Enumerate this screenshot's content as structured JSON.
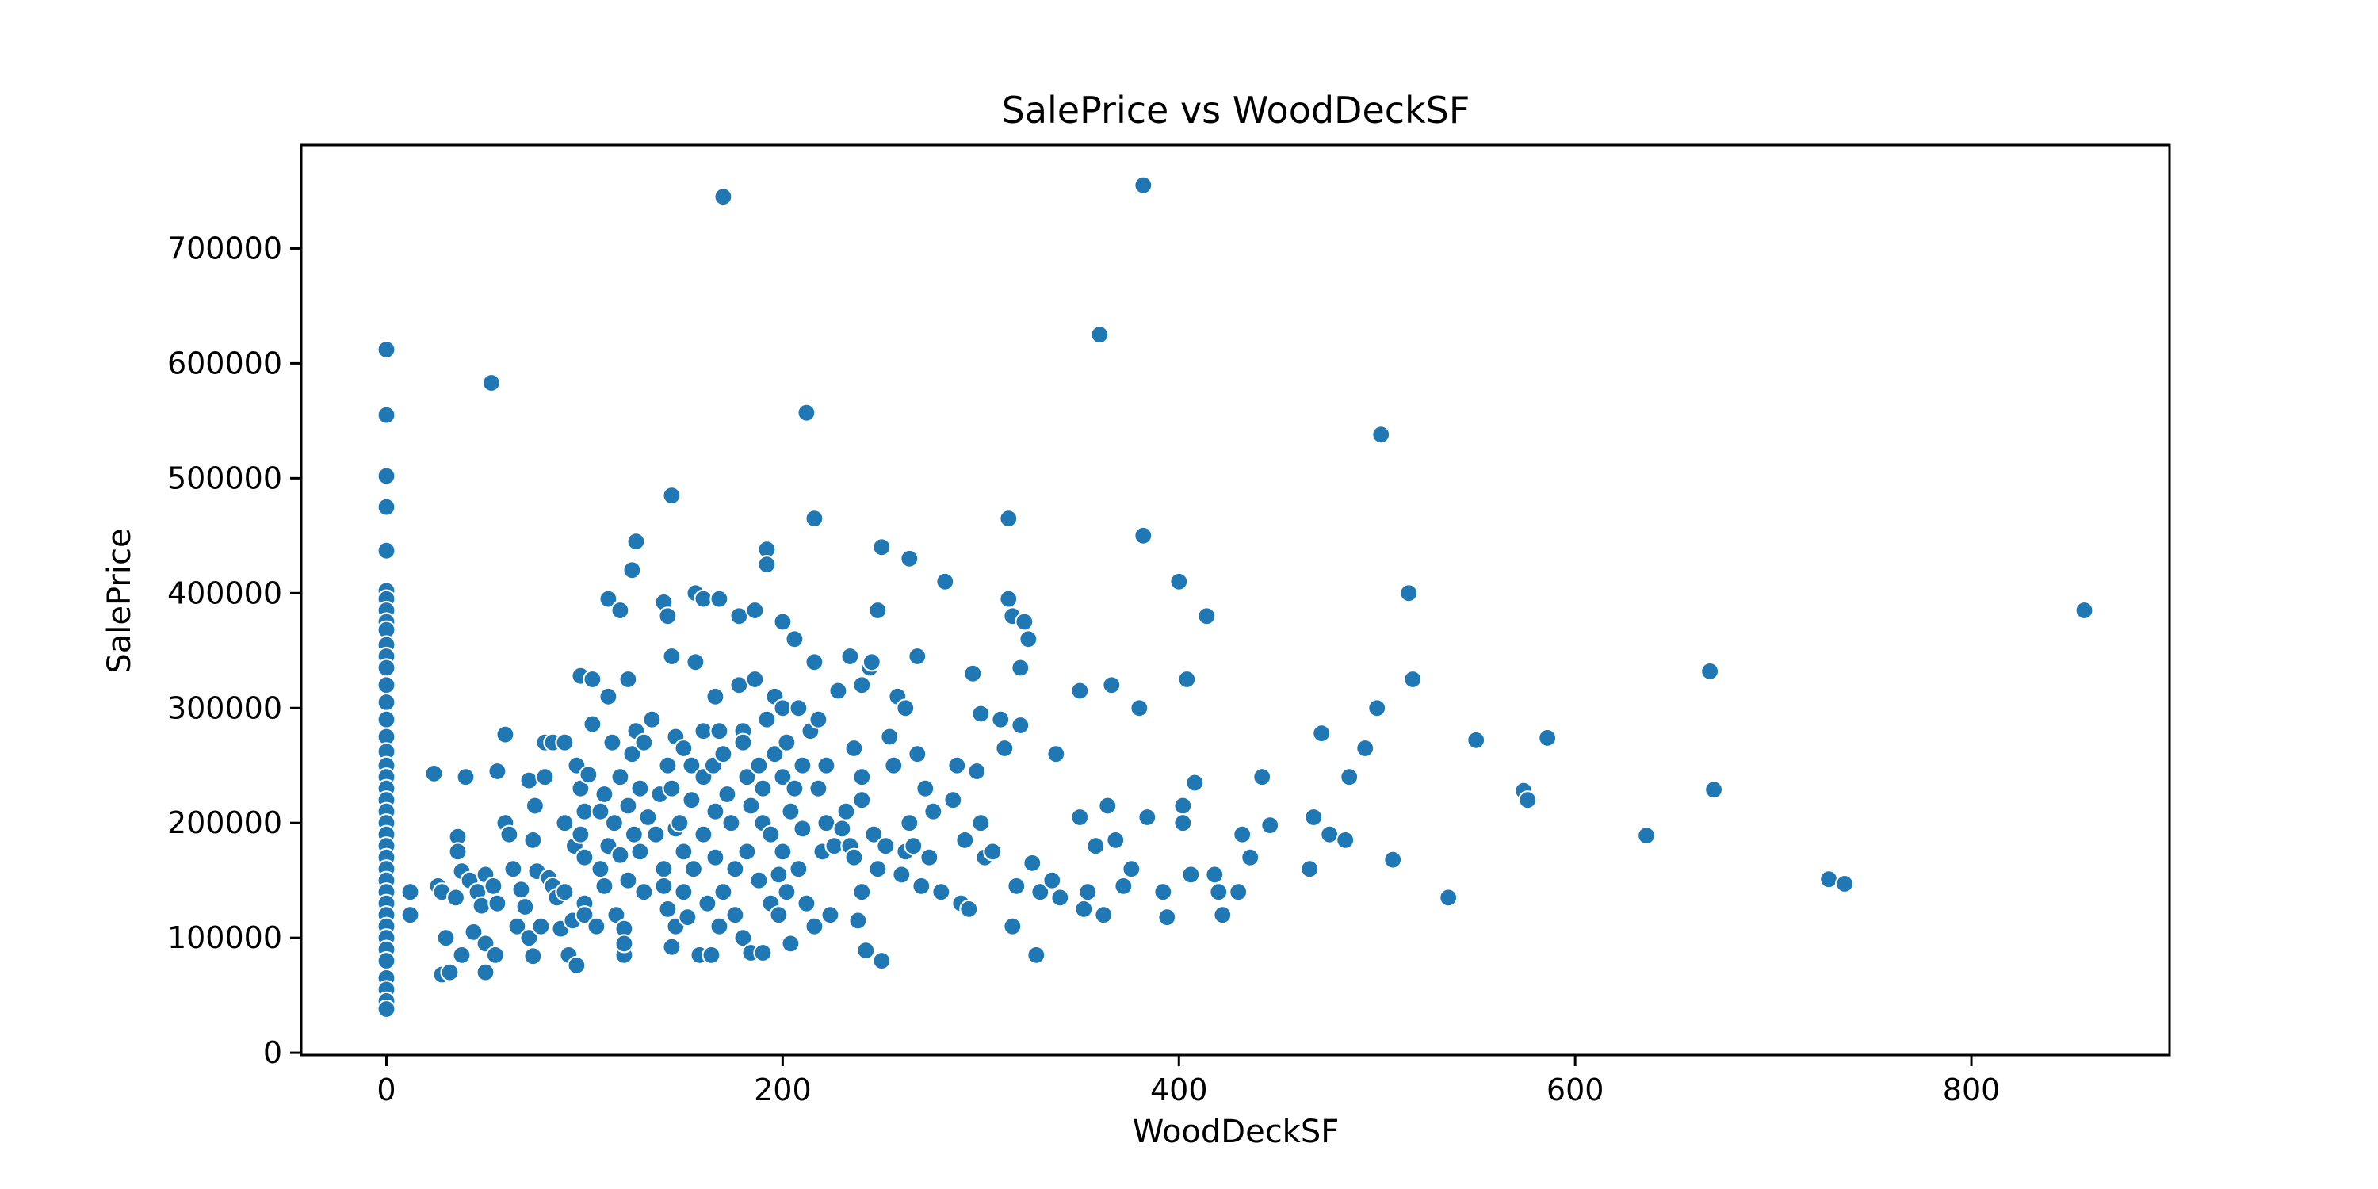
{
  "chart_data": {
    "type": "scatter",
    "title": "SalePrice vs WoodDeckSF",
    "xlabel": "WoodDeckSF",
    "ylabel": "SalePrice",
    "xlim": [
      -43,
      900
    ],
    "ylim": [
      -2000,
      790000
    ],
    "x_ticks": [
      0,
      200,
      400,
      600,
      800
    ],
    "y_ticks": [
      0,
      100000,
      200000,
      300000,
      400000,
      500000,
      600000,
      700000
    ],
    "x_tick_labels": [
      "0",
      "200",
      "400",
      "600",
      "800"
    ],
    "y_tick_labels": [
      "0",
      "100000",
      "200000",
      "300000",
      "400000",
      "500000",
      "600000",
      "700000"
    ],
    "grid": false,
    "legend": "none",
    "marker_color": "#1f77b4",
    "points": [
      [
        0,
        612000
      ],
      [
        0,
        555000
      ],
      [
        0,
        502000
      ],
      [
        0,
        475000
      ],
      [
        0,
        437000
      ],
      [
        0,
        402000
      ],
      [
        0,
        395000
      ],
      [
        0,
        385000
      ],
      [
        0,
        375000
      ],
      [
        0,
        368000
      ],
      [
        0,
        355000
      ],
      [
        0,
        345000
      ],
      [
        0,
        335000
      ],
      [
        0,
        320000
      ],
      [
        0,
        305000
      ],
      [
        0,
        290000
      ],
      [
        0,
        275000
      ],
      [
        0,
        262000
      ],
      [
        0,
        250000
      ],
      [
        0,
        240000
      ],
      [
        0,
        230000
      ],
      [
        0,
        220000
      ],
      [
        0,
        210000
      ],
      [
        0,
        200000
      ],
      [
        0,
        190000
      ],
      [
        0,
        180000
      ],
      [
        0,
        170000
      ],
      [
        0,
        160000
      ],
      [
        0,
        150000
      ],
      [
        0,
        140000
      ],
      [
        0,
        130000
      ],
      [
        0,
        120000
      ],
      [
        0,
        110000
      ],
      [
        0,
        100000
      ],
      [
        0,
        90000
      ],
      [
        0,
        80000
      ],
      [
        0,
        65000
      ],
      [
        0,
        55000
      ],
      [
        0,
        45000
      ],
      [
        0,
        38000
      ],
      [
        12,
        140000
      ],
      [
        12,
        120000
      ],
      [
        24,
        243000
      ],
      [
        26,
        145000
      ],
      [
        28,
        140000
      ],
      [
        28,
        68000
      ],
      [
        30,
        100000
      ],
      [
        32,
        70000
      ],
      [
        35,
        135000
      ],
      [
        36,
        188000
      ],
      [
        36,
        175000
      ],
      [
        38,
        158000
      ],
      [
        38,
        85000
      ],
      [
        40,
        240000
      ],
      [
        42,
        150000
      ],
      [
        44,
        105000
      ],
      [
        46,
        140000
      ],
      [
        48,
        128000
      ],
      [
        50,
        155000
      ],
      [
        50,
        95000
      ],
      [
        50,
        70000
      ],
      [
        53,
        583000
      ],
      [
        54,
        145000
      ],
      [
        55,
        85000
      ],
      [
        56,
        130000
      ],
      [
        56,
        245000
      ],
      [
        60,
        277000
      ],
      [
        60,
        200000
      ],
      [
        62,
        190000
      ],
      [
        64,
        160000
      ],
      [
        66,
        110000
      ],
      [
        68,
        142000
      ],
      [
        70,
        127000
      ],
      [
        72,
        100000
      ],
      [
        72,
        237000
      ],
      [
        74,
        185000
      ],
      [
        74,
        84000
      ],
      [
        75,
        215000
      ],
      [
        76,
        158000
      ],
      [
        78,
        110000
      ],
      [
        80,
        270000
      ],
      [
        80,
        240000
      ],
      [
        82,
        152000
      ],
      [
        84,
        270000
      ],
      [
        84,
        145000
      ],
      [
        86,
        135000
      ],
      [
        88,
        108000
      ],
      [
        90,
        270000
      ],
      [
        90,
        200000
      ],
      [
        90,
        140000
      ],
      [
        92,
        85000
      ],
      [
        94,
        115000
      ],
      [
        95,
        180000
      ],
      [
        96,
        250000
      ],
      [
        96,
        76000
      ],
      [
        98,
        328000
      ],
      [
        98,
        230000
      ],
      [
        98,
        190000
      ],
      [
        100,
        210000
      ],
      [
        100,
        170000
      ],
      [
        100,
        130000
      ],
      [
        100,
        120000
      ],
      [
        102,
        242000
      ],
      [
        104,
        286000
      ],
      [
        104,
        325000
      ],
      [
        106,
        110000
      ],
      [
        108,
        210000
      ],
      [
        108,
        160000
      ],
      [
        110,
        225000
      ],
      [
        110,
        145000
      ],
      [
        112,
        180000
      ],
      [
        112,
        395000
      ],
      [
        112,
        310000
      ],
      [
        114,
        270000
      ],
      [
        115,
        200000
      ],
      [
        116,
        120000
      ],
      [
        118,
        385000
      ],
      [
        118,
        240000
      ],
      [
        118,
        172000
      ],
      [
        120,
        108000
      ],
      [
        120,
        85000
      ],
      [
        120,
        95000
      ],
      [
        122,
        325000
      ],
      [
        122,
        215000
      ],
      [
        122,
        150000
      ],
      [
        124,
        420000
      ],
      [
        124,
        260000
      ],
      [
        125,
        190000
      ],
      [
        126,
        445000
      ],
      [
        126,
        280000
      ],
      [
        128,
        230000
      ],
      [
        128,
        175000
      ],
      [
        130,
        140000
      ],
      [
        130,
        270000
      ],
      [
        132,
        205000
      ],
      [
        134,
        290000
      ],
      [
        136,
        190000
      ],
      [
        138,
        225000
      ],
      [
        140,
        392000
      ],
      [
        140,
        160000
      ],
      [
        140,
        145000
      ],
      [
        142,
        380000
      ],
      [
        142,
        250000
      ],
      [
        142,
        125000
      ],
      [
        144,
        485000
      ],
      [
        144,
        345000
      ],
      [
        144,
        230000
      ],
      [
        144,
        92000
      ],
      [
        146,
        275000
      ],
      [
        146,
        195000
      ],
      [
        146,
        110000
      ],
      [
        148,
        200000
      ],
      [
        150,
        265000
      ],
      [
        150,
        175000
      ],
      [
        150,
        140000
      ],
      [
        152,
        118000
      ],
      [
        154,
        220000
      ],
      [
        154,
        250000
      ],
      [
        155,
        160000
      ],
      [
        156,
        340000
      ],
      [
        156,
        400000
      ],
      [
        158,
        85000
      ],
      [
        160,
        395000
      ],
      [
        160,
        280000
      ],
      [
        160,
        240000
      ],
      [
        160,
        190000
      ],
      [
        162,
        130000
      ],
      [
        164,
        85000
      ],
      [
        165,
        250000
      ],
      [
        166,
        310000
      ],
      [
        166,
        210000
      ],
      [
        166,
        170000
      ],
      [
        168,
        395000
      ],
      [
        168,
        280000
      ],
      [
        168,
        110000
      ],
      [
        170,
        745000
      ],
      [
        170,
        260000
      ],
      [
        170,
        140000
      ],
      [
        172,
        225000
      ],
      [
        174,
        200000
      ],
      [
        176,
        160000
      ],
      [
        176,
        120000
      ],
      [
        178,
        380000
      ],
      [
        178,
        320000
      ],
      [
        180,
        280000
      ],
      [
        180,
        270000
      ],
      [
        180,
        100000
      ],
      [
        182,
        240000
      ],
      [
        182,
        175000
      ],
      [
        184,
        215000
      ],
      [
        184,
        87000
      ],
      [
        186,
        325000
      ],
      [
        186,
        385000
      ],
      [
        188,
        250000
      ],
      [
        188,
        150000
      ],
      [
        190,
        200000
      ],
      [
        190,
        230000
      ],
      [
        190,
        87000
      ],
      [
        192,
        438000
      ],
      [
        192,
        425000
      ],
      [
        192,
        290000
      ],
      [
        194,
        190000
      ],
      [
        194,
        130000
      ],
      [
        196,
        260000
      ],
      [
        196,
        310000
      ],
      [
        198,
        120000
      ],
      [
        198,
        155000
      ],
      [
        200,
        375000
      ],
      [
        200,
        300000
      ],
      [
        200,
        240000
      ],
      [
        200,
        175000
      ],
      [
        202,
        140000
      ],
      [
        202,
        270000
      ],
      [
        204,
        210000
      ],
      [
        204,
        95000
      ],
      [
        206,
        360000
      ],
      [
        206,
        230000
      ],
      [
        208,
        300000
      ],
      [
        208,
        160000
      ],
      [
        210,
        250000
      ],
      [
        210,
        195000
      ],
      [
        212,
        130000
      ],
      [
        212,
        557000
      ],
      [
        214,
        280000
      ],
      [
        216,
        465000
      ],
      [
        216,
        340000
      ],
      [
        216,
        110000
      ],
      [
        218,
        230000
      ],
      [
        218,
        290000
      ],
      [
        220,
        175000
      ],
      [
        222,
        250000
      ],
      [
        222,
        200000
      ],
      [
        224,
        120000
      ],
      [
        226,
        180000
      ],
      [
        228,
        315000
      ],
      [
        230,
        195000
      ],
      [
        232,
        210000
      ],
      [
        234,
        345000
      ],
      [
        234,
        180000
      ],
      [
        236,
        265000
      ],
      [
        236,
        170000
      ],
      [
        238,
        115000
      ],
      [
        240,
        320000
      ],
      [
        240,
        240000
      ],
      [
        240,
        220000
      ],
      [
        240,
        140000
      ],
      [
        242,
        89000
      ],
      [
        244,
        335000
      ],
      [
        245,
        340000
      ],
      [
        246,
        190000
      ],
      [
        248,
        385000
      ],
      [
        248,
        160000
      ],
      [
        250,
        440000
      ],
      [
        250,
        80000
      ],
      [
        252,
        180000
      ],
      [
        254,
        275000
      ],
      [
        256,
        250000
      ],
      [
        258,
        310000
      ],
      [
        260,
        155000
      ],
      [
        262,
        175000
      ],
      [
        262,
        300000
      ],
      [
        264,
        430000
      ],
      [
        264,
        200000
      ],
      [
        266,
        180000
      ],
      [
        268,
        345000
      ],
      [
        268,
        260000
      ],
      [
        270,
        145000
      ],
      [
        272,
        230000
      ],
      [
        274,
        170000
      ],
      [
        276,
        210000
      ],
      [
        280,
        140000
      ],
      [
        282,
        410000
      ],
      [
        286,
        220000
      ],
      [
        288,
        250000
      ],
      [
        290,
        130000
      ],
      [
        292,
        185000
      ],
      [
        294,
        125000
      ],
      [
        296,
        330000
      ],
      [
        298,
        245000
      ],
      [
        300,
        295000
      ],
      [
        300,
        200000
      ],
      [
        302,
        170000
      ],
      [
        306,
        175000
      ],
      [
        310,
        290000
      ],
      [
        312,
        265000
      ],
      [
        314,
        465000
      ],
      [
        314,
        395000
      ],
      [
        316,
        380000
      ],
      [
        316,
        110000
      ],
      [
        318,
        145000
      ],
      [
        320,
        335000
      ],
      [
        320,
        285000
      ],
      [
        322,
        375000
      ],
      [
        324,
        360000
      ],
      [
        326,
        165000
      ],
      [
        328,
        85000
      ],
      [
        330,
        140000
      ],
      [
        336,
        150000
      ],
      [
        338,
        260000
      ],
      [
        340,
        135000
      ],
      [
        350,
        315000
      ],
      [
        350,
        205000
      ],
      [
        352,
        125000
      ],
      [
        354,
        140000
      ],
      [
        358,
        180000
      ],
      [
        360,
        625000
      ],
      [
        362,
        120000
      ],
      [
        364,
        215000
      ],
      [
        366,
        320000
      ],
      [
        368,
        185000
      ],
      [
        372,
        145000
      ],
      [
        376,
        160000
      ],
      [
        380,
        300000
      ],
      [
        382,
        755000
      ],
      [
        382,
        450000
      ],
      [
        384,
        205000
      ],
      [
        392,
        140000
      ],
      [
        394,
        118000
      ],
      [
        400,
        410000
      ],
      [
        402,
        215000
      ],
      [
        402,
        200000
      ],
      [
        404,
        325000
      ],
      [
        406,
        155000
      ],
      [
        408,
        235000
      ],
      [
        414,
        380000
      ],
      [
        418,
        155000
      ],
      [
        420,
        140000
      ],
      [
        422,
        120000
      ],
      [
        430,
        140000
      ],
      [
        432,
        190000
      ],
      [
        436,
        170000
      ],
      [
        442,
        240000
      ],
      [
        446,
        198000
      ],
      [
        466,
        160000
      ],
      [
        468,
        205000
      ],
      [
        472,
        278000
      ],
      [
        476,
        190000
      ],
      [
        484,
        185000
      ],
      [
        486,
        240000
      ],
      [
        494,
        265000
      ],
      [
        500,
        300000
      ],
      [
        502,
        538000
      ],
      [
        508,
        168000
      ],
      [
        516,
        400000
      ],
      [
        518,
        325000
      ],
      [
        536,
        135000
      ],
      [
        550,
        272000
      ],
      [
        574,
        228000
      ],
      [
        576,
        220000
      ],
      [
        586,
        274000
      ],
      [
        636,
        189000
      ],
      [
        668,
        332000
      ],
      [
        670,
        229000
      ],
      [
        728,
        151000
      ],
      [
        736,
        147000
      ],
      [
        857,
        385000
      ]
    ]
  }
}
